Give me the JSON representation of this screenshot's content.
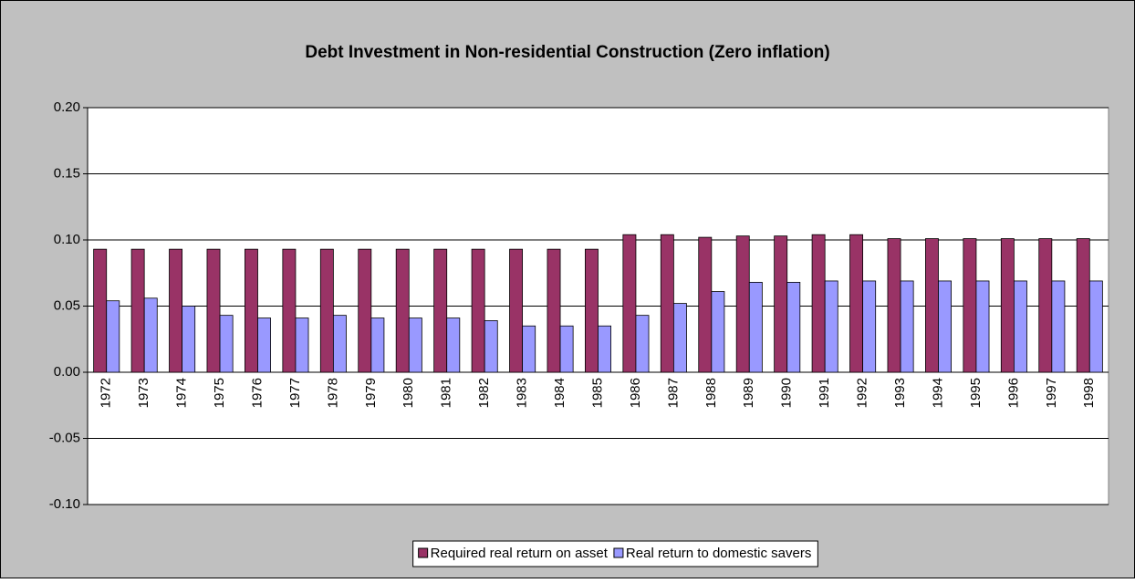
{
  "chart_data": {
    "type": "bar",
    "title": "Debt Investment in Non-residential Construction (Zero inflation)",
    "categories": [
      "1972",
      "1973",
      "1974",
      "1975",
      "1976",
      "1977",
      "1978",
      "1979",
      "1980",
      "1981",
      "1982",
      "1983",
      "1984",
      "1985",
      "1986",
      "1987",
      "1988",
      "1989",
      "1990",
      "1991",
      "1992",
      "1993",
      "1994",
      "1995",
      "1996",
      "1997",
      "1998"
    ],
    "series": [
      {
        "name": "Required real return on asset",
        "color": "#993366",
        "values": [
          0.093,
          0.093,
          0.093,
          0.093,
          0.093,
          0.093,
          0.093,
          0.093,
          0.093,
          0.093,
          0.093,
          0.093,
          0.093,
          0.093,
          0.104,
          0.104,
          0.102,
          0.103,
          0.103,
          0.104,
          0.104,
          0.101,
          0.101,
          0.101,
          0.101,
          0.101,
          0.101
        ]
      },
      {
        "name": "Real return to domestic savers",
        "color": "#9999ff",
        "values": [
          0.054,
          0.056,
          0.05,
          0.043,
          0.041,
          0.041,
          0.043,
          0.041,
          0.041,
          0.041,
          0.039,
          0.035,
          0.035,
          0.035,
          0.043,
          0.052,
          0.061,
          0.068,
          0.068,
          0.069,
          0.069,
          0.069,
          0.069,
          0.069,
          0.069,
          0.069,
          0.069
        ]
      }
    ],
    "ylim": [
      -0.1,
      0.2
    ],
    "yticks": [
      {
        "value": -0.1,
        "label": "-0.10"
      },
      {
        "value": -0.05,
        "label": "-0.05"
      },
      {
        "value": 0,
        "label": "0.00"
      },
      {
        "value": 0.05,
        "label": "0.05"
      },
      {
        "value": 0.1,
        "label": "0.10"
      },
      {
        "value": 0.15,
        "label": "0.15"
      },
      {
        "value": 0.2,
        "label": "0.20"
      }
    ],
    "grid": true,
    "legend": "bottom"
  }
}
